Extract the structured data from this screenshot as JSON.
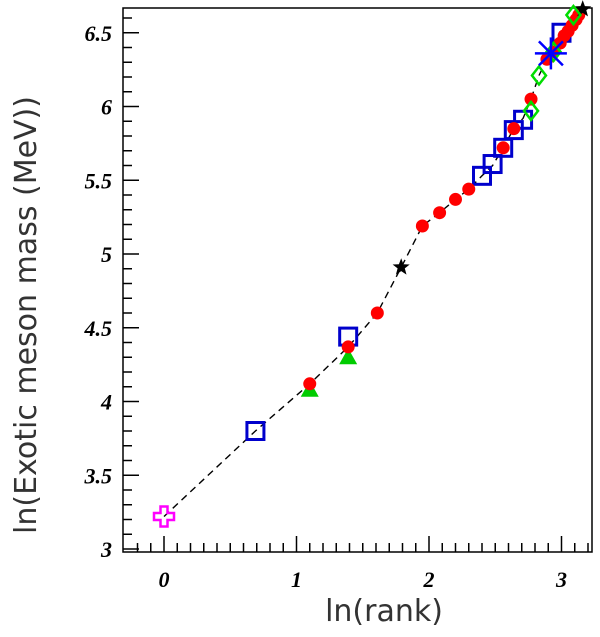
{
  "chart_data": {
    "type": "scatter",
    "xlabel": "ln(rank)",
    "ylabel": "ln(Exotic meson mass (MeV))",
    "xlim": [
      -0.25,
      3.25
    ],
    "ylim": [
      3.0,
      6.75
    ],
    "x_ticks": [
      0,
      1,
      2,
      3
    ],
    "x_tick_labels": [
      "0",
      "1",
      "2",
      "3"
    ],
    "y_ticks": [
      3,
      3.5,
      4,
      4.5,
      5,
      5.5,
      6,
      6.5
    ],
    "y_tick_labels": [
      "3",
      "3.5",
      "4",
      "4.5",
      "5",
      "5.5",
      "6",
      "6.5"
    ],
    "grid": false,
    "fit_line": {
      "style": "dashed",
      "color": "#000000",
      "points": [
        [
          0.0,
          3.22
        ],
        [
          0.69,
          3.8
        ],
        [
          1.1,
          4.12
        ],
        [
          1.39,
          4.37
        ],
        [
          1.61,
          4.6
        ],
        [
          1.79,
          4.91
        ],
        [
          1.95,
          5.19
        ],
        [
          2.08,
          5.28
        ],
        [
          2.2,
          5.37
        ],
        [
          2.3,
          5.44
        ],
        [
          2.4,
          5.53
        ],
        [
          2.48,
          5.6
        ],
        [
          2.56,
          5.72
        ],
        [
          2.64,
          5.85
        ],
        [
          2.71,
          5.92
        ],
        [
          2.77,
          6.05
        ],
        [
          2.83,
          6.21
        ],
        [
          2.89,
          6.32
        ],
        [
          2.94,
          6.4
        ],
        [
          3.0,
          6.48
        ],
        [
          3.04,
          6.53
        ],
        [
          3.09,
          6.6
        ],
        [
          3.14,
          6.66
        ]
      ]
    },
    "series": [
      {
        "marker": "cross",
        "color": "#ff00ff",
        "points": [
          [
            0.0,
            3.22
          ]
        ]
      },
      {
        "marker": "open-square",
        "color": "#0000cc",
        "points": [
          [
            0.69,
            3.8
          ],
          [
            1.39,
            4.44
          ],
          [
            2.4,
            5.53
          ],
          [
            2.48,
            5.61
          ],
          [
            2.56,
            5.72
          ],
          [
            2.64,
            5.84
          ],
          [
            2.71,
            5.91
          ],
          [
            3.0,
            6.5
          ]
        ]
      },
      {
        "marker": "filled-triangle",
        "color": "#00cc00",
        "points": [
          [
            1.1,
            4.08
          ],
          [
            1.39,
            4.3
          ]
        ]
      },
      {
        "marker": "filled-circle",
        "color": "#ff0000",
        "points": [
          [
            1.1,
            4.12
          ],
          [
            1.39,
            4.37
          ],
          [
            1.61,
            4.6
          ],
          [
            1.95,
            5.19
          ],
          [
            2.08,
            5.28
          ],
          [
            2.2,
            5.37
          ],
          [
            2.3,
            5.44
          ],
          [
            2.56,
            5.72
          ],
          [
            2.64,
            5.85
          ],
          [
            2.77,
            6.05
          ],
          [
            2.89,
            6.32
          ],
          [
            2.94,
            6.37
          ],
          [
            2.99,
            6.43
          ],
          [
            3.02,
            6.48
          ],
          [
            3.05,
            6.51
          ],
          [
            3.08,
            6.55
          ],
          [
            3.11,
            6.59
          ],
          [
            3.13,
            6.62
          ]
        ]
      },
      {
        "marker": "star",
        "color": "#000000",
        "points": [
          [
            1.79,
            4.91
          ],
          [
            3.16,
            6.66
          ]
        ]
      },
      {
        "marker": "open-diamond",
        "color": "#00dd00",
        "points": [
          [
            2.77,
            5.97
          ],
          [
            2.83,
            6.21
          ],
          [
            2.94,
            6.37
          ],
          [
            3.09,
            6.62
          ]
        ]
      },
      {
        "marker": "asterisk",
        "color": "#0000ff",
        "points": [
          [
            2.92,
            6.36
          ]
        ]
      }
    ]
  }
}
